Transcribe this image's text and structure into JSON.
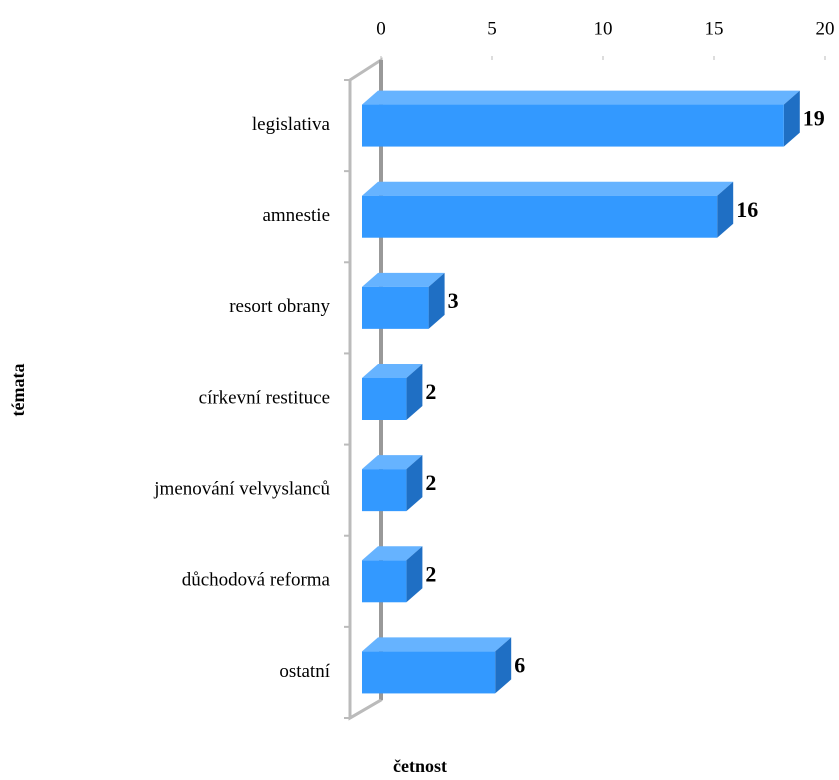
{
  "chart_data": {
    "type": "bar",
    "orientation": "horizontal",
    "categories": [
      "legislativa",
      "amnestie",
      "resort obrany",
      "církevní restituce",
      "jmenování velvyslanců",
      "důchodová reforma",
      "ostatní"
    ],
    "values": [
      19,
      16,
      3,
      2,
      2,
      2,
      6
    ],
    "color": "#3399ff",
    "xlim": [
      0,
      20
    ],
    "xticks": [
      0,
      5,
      10,
      15,
      20
    ],
    "xlabel": "četnost",
    "ylabel": "témata",
    "grid": false
  }
}
